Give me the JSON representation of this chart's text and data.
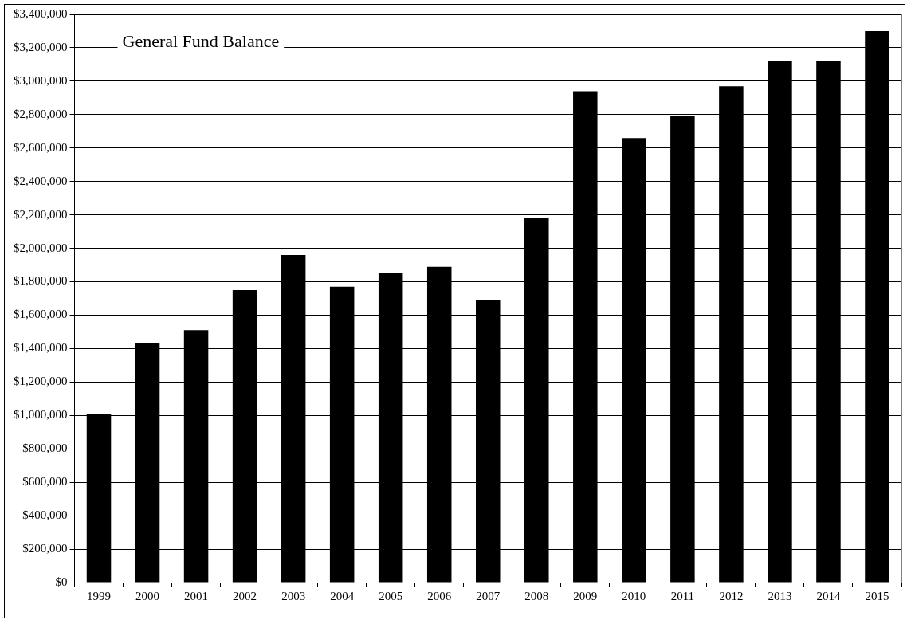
{
  "chart_data": {
    "type": "bar",
    "title": "General Fund Balance",
    "categories": [
      "1999",
      "2000",
      "2001",
      "2002",
      "2003",
      "2004",
      "2005",
      "2006",
      "2007",
      "2008",
      "2009",
      "2010",
      "2011",
      "2012",
      "2013",
      "2014",
      "2015"
    ],
    "values": [
      1010000,
      1430000,
      1510000,
      1750000,
      1960000,
      1770000,
      1850000,
      1890000,
      1690000,
      2180000,
      2940000,
      2660000,
      2790000,
      2970000,
      3120000,
      3120000,
      3300000
    ],
    "color": "#000000",
    "ylim": [
      0,
      3400000
    ],
    "yticks": [
      {
        "value": 0,
        "label": "$0"
      },
      {
        "value": 200000,
        "label": "$200,000"
      },
      {
        "value": 400000,
        "label": "$400,000"
      },
      {
        "value": 600000,
        "label": "$600,000"
      },
      {
        "value": 800000,
        "label": "$800,000"
      },
      {
        "value": 1000000,
        "label": "$1,000,000"
      },
      {
        "value": 1200000,
        "label": "$1,200,000"
      },
      {
        "value": 1400000,
        "label": "$1,400,000"
      },
      {
        "value": 1600000,
        "label": "$1,600,000"
      },
      {
        "value": 1800000,
        "label": "$1,800,000"
      },
      {
        "value": 2000000,
        "label": "$2,000,000"
      },
      {
        "value": 2200000,
        "label": "$2,200,000"
      },
      {
        "value": 2400000,
        "label": "$2,400,000"
      },
      {
        "value": 2600000,
        "label": "$2,600,000"
      },
      {
        "value": 2800000,
        "label": "$2,800,000"
      },
      {
        "value": 3000000,
        "label": "$3,000,000"
      },
      {
        "value": 3200000,
        "label": "$3,200,000"
      },
      {
        "value": 3400000,
        "label": "$3,400,000"
      }
    ],
    "grid": "y",
    "legend": false
  }
}
